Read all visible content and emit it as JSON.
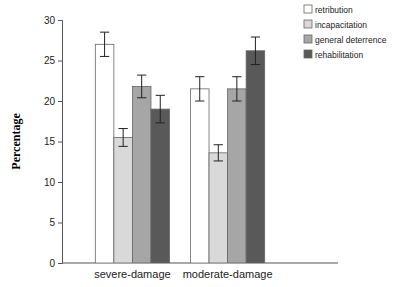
{
  "chart_data": {
    "type": "bar",
    "categories": [
      "severe-damage",
      "moderate-damage"
    ],
    "y_label": "Percentage",
    "series": [
      {
        "name": "retribution",
        "color": "#ffffff",
        "values": [
          27,
          21.5
        ],
        "errors": [
          1.5,
          1.5
        ]
      },
      {
        "name": "incapacitation",
        "color": "#d9d9d9",
        "values": [
          15.5,
          13.6
        ],
        "errors": [
          1.1,
          1.0
        ]
      },
      {
        "name": "general deterrence",
        "color": "#a6a6a6",
        "values": [
          21.8,
          21.5
        ],
        "errors": [
          1.4,
          1.5
        ]
      },
      {
        "name": "rehabilitation",
        "color": "#595959",
        "values": [
          19,
          26.2
        ],
        "errors": [
          1.7,
          1.7
        ]
      }
    ],
    "ylim": [
      0,
      30
    ],
    "yticks": [
      0,
      5,
      10,
      15,
      20,
      25,
      30
    ],
    "legend": "upper-right",
    "grid": false
  }
}
